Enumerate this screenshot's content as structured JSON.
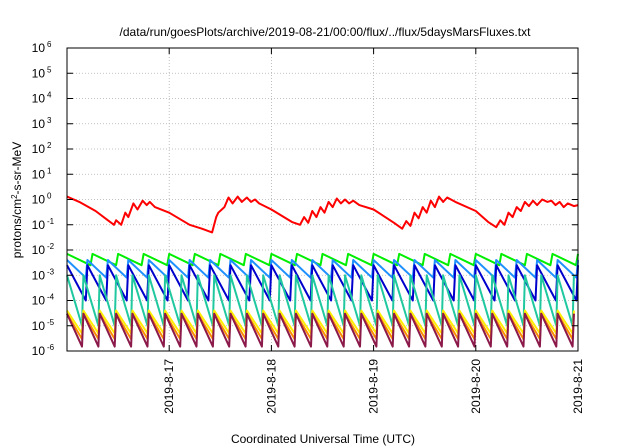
{
  "chart_data": {
    "type": "line",
    "title": "/data/run/goesPlots/archive/2019-08-21/00:00/flux/../flux/5daysMarsFluxes.txt",
    "xlabel": "Coordinated Universal Time (UTC)",
    "ylabel": {
      "prefix": "protons/cm",
      "sup": "2",
      "suffix": "-s-sr-MeV"
    },
    "yscale": "log",
    "ylim": [
      1e-06,
      1000000.0
    ],
    "xlim": [
      0,
      5
    ],
    "grid": true,
    "y_ticks": [
      {
        "exp": -6,
        "label": "10",
        "sup": "-6"
      },
      {
        "exp": -5,
        "label": "10",
        "sup": "-5"
      },
      {
        "exp": -4,
        "label": "10",
        "sup": "-4"
      },
      {
        "exp": -3,
        "label": "10",
        "sup": "-3"
      },
      {
        "exp": -2,
        "label": "10",
        "sup": "-2"
      },
      {
        "exp": -1,
        "label": "10",
        "sup": "-1"
      },
      {
        "exp": 0,
        "label": "10",
        "sup": "0"
      },
      {
        "exp": 1,
        "label": "10",
        "sup": "1"
      },
      {
        "exp": 2,
        "label": "10",
        "sup": "2"
      },
      {
        "exp": 3,
        "label": "10",
        "sup": "3"
      },
      {
        "exp": 4,
        "label": "10",
        "sup": "4"
      },
      {
        "exp": 5,
        "label": "10",
        "sup": "5"
      },
      {
        "exp": 6,
        "label": "10",
        "sup": "6"
      }
    ],
    "x_ticks": [
      {
        "x": 1,
        "label": "2019-8-17"
      },
      {
        "x": 2,
        "label": "2019-8-18"
      },
      {
        "x": 3,
        "label": "2019-8-19"
      },
      {
        "x": 4,
        "label": "2019-8-20"
      },
      {
        "x": 5,
        "label": "2019-8-21"
      }
    ],
    "series": [
      {
        "color": "#ff0000",
        "points": [
          [
            0.0,
            1.3
          ],
          [
            0.12,
            0.8
          ],
          [
            0.28,
            0.35
          ],
          [
            0.4,
            0.15
          ],
          [
            0.46,
            0.1
          ],
          [
            0.48,
            0.15
          ],
          [
            0.53,
            0.1
          ],
          [
            0.57,
            0.3
          ],
          [
            0.6,
            0.2
          ],
          [
            0.65,
            0.7
          ],
          [
            0.69,
            0.4
          ],
          [
            0.74,
            0.9
          ],
          [
            0.78,
            0.6
          ],
          [
            0.81,
            0.8
          ],
          [
            0.86,
            0.5
          ],
          [
            1.0,
            0.3
          ],
          [
            1.2,
            0.1
          ],
          [
            1.32,
            0.07
          ],
          [
            1.42,
            0.05
          ],
          [
            1.46,
            0.2
          ],
          [
            1.48,
            0.3
          ],
          [
            1.54,
            0.5
          ],
          [
            1.58,
            1.2
          ],
          [
            1.62,
            0.7
          ],
          [
            1.67,
            1.3
          ],
          [
            1.71,
            0.8
          ],
          [
            1.76,
            1.2
          ],
          [
            1.8,
            0.8
          ],
          [
            1.84,
            1.0
          ],
          [
            1.88,
            0.7
          ],
          [
            2.0,
            0.4
          ],
          [
            2.2,
            0.13
          ],
          [
            2.28,
            0.1
          ],
          [
            2.32,
            0.2
          ],
          [
            2.36,
            0.12
          ],
          [
            2.4,
            0.35
          ],
          [
            2.44,
            0.2
          ],
          [
            2.48,
            0.5
          ],
          [
            2.52,
            0.3
          ],
          [
            2.56,
            0.8
          ],
          [
            2.6,
            0.5
          ],
          [
            2.64,
            1.1
          ],
          [
            2.68,
            0.7
          ],
          [
            2.72,
            1.0
          ],
          [
            2.76,
            0.7
          ],
          [
            2.8,
            0.9
          ],
          [
            2.86,
            0.6
          ],
          [
            3.0,
            0.4
          ],
          [
            3.2,
            0.12
          ],
          [
            3.28,
            0.07
          ],
          [
            3.32,
            0.14
          ],
          [
            3.36,
            0.09
          ],
          [
            3.4,
            0.3
          ],
          [
            3.44,
            0.18
          ],
          [
            3.48,
            0.5
          ],
          [
            3.52,
            0.3
          ],
          [
            3.56,
            0.9
          ],
          [
            3.6,
            0.5
          ],
          [
            3.64,
            1.3
          ],
          [
            3.68,
            0.8
          ],
          [
            3.72,
            1.2
          ],
          [
            3.8,
            0.8
          ],
          [
            4.0,
            0.35
          ],
          [
            4.12,
            0.13
          ],
          [
            4.2,
            0.08
          ],
          [
            4.24,
            0.15
          ],
          [
            4.28,
            0.1
          ],
          [
            4.32,
            0.3
          ],
          [
            4.36,
            0.2
          ],
          [
            4.4,
            0.5
          ],
          [
            4.44,
            0.35
          ],
          [
            4.48,
            0.8
          ],
          [
            4.52,
            0.55
          ],
          [
            4.56,
            0.9
          ],
          [
            4.6,
            0.6
          ],
          [
            4.65,
            1.0
          ],
          [
            4.7,
            0.8
          ],
          [
            4.74,
            0.9
          ],
          [
            4.78,
            0.6
          ],
          [
            4.82,
            0.8
          ],
          [
            4.86,
            0.5
          ],
          [
            4.9,
            0.7
          ],
          [
            4.96,
            0.55
          ],
          [
            5.0,
            0.6
          ]
        ]
      },
      {
        "color": "#00ee00",
        "period": 0.25,
        "hi": 0.007,
        "lo": 0.0025
      },
      {
        "color": "#1e90ff",
        "period": 0.2,
        "hi": 0.004,
        "lo": 0.0008
      },
      {
        "color": "#0000cd",
        "period": 0.2,
        "hi": 0.0025,
        "lo": 0.0001
      },
      {
        "color": "#20c8a0",
        "period": 0.16,
        "hi": 0.001,
        "lo": 1e-05
      },
      {
        "color": "#ffee00",
        "period": 0.16,
        "hi": 4e-05,
        "lo": 5e-06
      },
      {
        "color": "#ff8c00",
        "period": 0.16,
        "hi": 3e-05,
        "lo": 3e-06
      },
      {
        "color": "#8b1a4a",
        "period": 0.16,
        "hi": 3e-05,
        "lo": 1.5e-06
      }
    ]
  }
}
